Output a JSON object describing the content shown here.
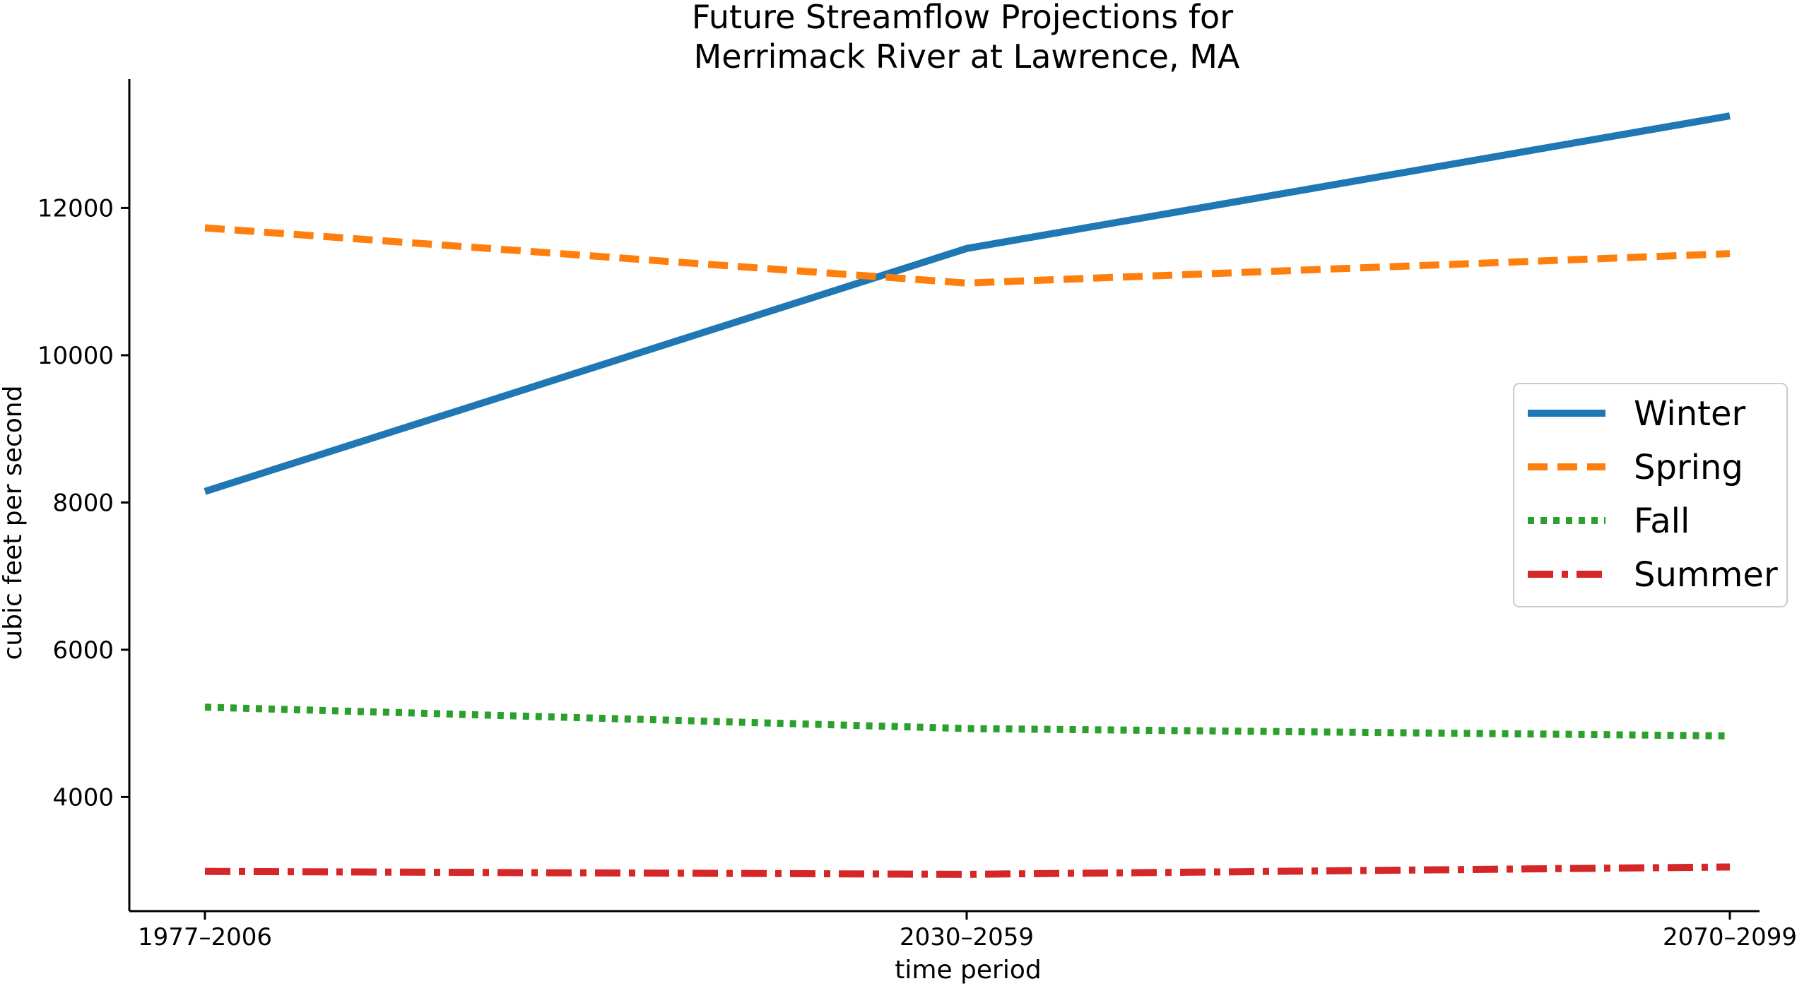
{
  "chart_data": {
    "type": "line",
    "title_line1": "Future Streamflow Projections for",
    "title_line2": "Merrimack River at Lawrence, MA",
    "xlabel": "time period",
    "ylabel": "cubic feet per second",
    "categories": [
      "1977–2006",
      "2030–2059",
      "2070–2099"
    ],
    "ylim": [
      2450,
      13750
    ],
    "yticks": [
      4000,
      6000,
      8000,
      10000,
      12000
    ],
    "grid": false,
    "legend_position": "center-right",
    "series": [
      {
        "name": "Winter",
        "values": [
          8150,
          11450,
          13250
        ],
        "color": "#1f77b4",
        "style": "solid"
      },
      {
        "name": "Spring",
        "values": [
          11730,
          10980,
          11380
        ],
        "color": "#ff7f0e",
        "style": "dashed"
      },
      {
        "name": "Fall",
        "values": [
          5220,
          4930,
          4830
        ],
        "color": "#2ca02c",
        "style": "dotted"
      },
      {
        "name": "Summer",
        "values": [
          2990,
          2950,
          3050
        ],
        "color": "#d62728",
        "style": "dashdot"
      }
    ]
  }
}
